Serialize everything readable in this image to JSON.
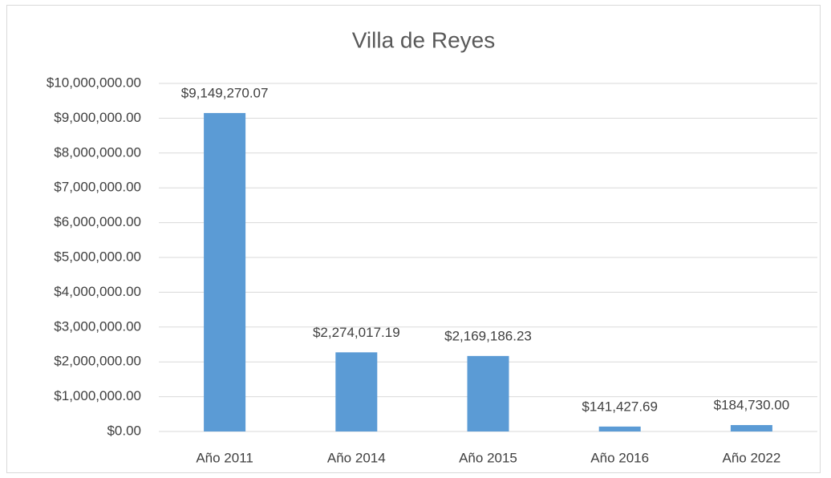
{
  "chart_data": {
    "type": "bar",
    "title": "Villa de Reyes",
    "categories": [
      "Año 2011",
      "Año 2014",
      "Año 2015",
      "Año 2016",
      "Año 2022"
    ],
    "values": [
      9149270.07,
      2274017.19,
      2169186.23,
      141427.69,
      184730.0
    ],
    "value_labels": [
      "$9,149,270.07",
      "$2,274,017.19",
      "$2,169,186.23",
      "$141,427.69",
      "$184,730.00"
    ],
    "color": "#5b9bd5",
    "ylim": [
      0,
      10000000
    ],
    "yticks": [
      {
        "value": 0,
        "label": "$0.00"
      },
      {
        "value": 1000000,
        "label": "$1,000,000.00"
      },
      {
        "value": 2000000,
        "label": "$2,000,000.00"
      },
      {
        "value": 3000000,
        "label": "$3,000,000.00"
      },
      {
        "value": 4000000,
        "label": "$4,000,000.00"
      },
      {
        "value": 5000000,
        "label": "$5,000,000.00"
      },
      {
        "value": 6000000,
        "label": "$6,000,000.00"
      },
      {
        "value": 7000000,
        "label": "$7,000,000.00"
      },
      {
        "value": 8000000,
        "label": "$8,000,000.00"
      },
      {
        "value": 9000000,
        "label": "$9,000,000.00"
      },
      {
        "value": 10000000,
        "label": "$10,000,000.00"
      }
    ],
    "grid": true
  }
}
